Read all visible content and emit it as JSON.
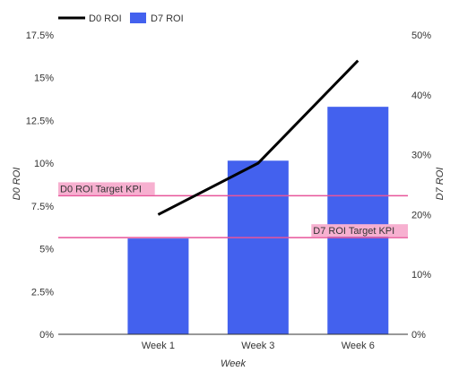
{
  "chart_data": {
    "type": "bar",
    "categories": [
      "Week 1",
      "Week 3",
      "Week 6"
    ],
    "xlabel": "Week",
    "ylabel_left": "D0 ROI",
    "ylabel_right": "D7 ROI",
    "ylim_left": [
      0,
      17.5
    ],
    "ylim_right": [
      0,
      50
    ],
    "left_ticks": [
      "0%",
      "2.5%",
      "5%",
      "7.5%",
      "10%",
      "12.5%",
      "15%",
      "17.5%"
    ],
    "left_tick_values": [
      0,
      2.5,
      5,
      7.5,
      10,
      12.5,
      15,
      17.5
    ],
    "right_ticks": [
      "0%",
      "10%",
      "20%",
      "30%",
      "40%",
      "50%"
    ],
    "right_tick_values": [
      0,
      10,
      20,
      30,
      40,
      50
    ],
    "series": [
      {
        "name": "D7 ROI",
        "type": "bar",
        "axis": "right",
        "values": [
          16,
          29,
          38
        ],
        "color": "#4361ee"
      },
      {
        "name": "D0 ROI",
        "type": "line",
        "axis": "left",
        "values": [
          7.0,
          10.0,
          16.0
        ],
        "color": "#000000"
      }
    ],
    "reference_lines": [
      {
        "label": "D0 ROI Target KPI",
        "axis": "left",
        "value": 8.1,
        "color": "#e8559a",
        "label_bg": "#f7b0d0",
        "label_position": "left"
      },
      {
        "label": "D7 ROI Target KPI",
        "axis": "left",
        "value": 5.65,
        "color": "#e8559a",
        "label_bg": "#f7b0d0",
        "label_position": "right"
      }
    ],
    "legend_position": "top-left",
    "grid": false
  }
}
